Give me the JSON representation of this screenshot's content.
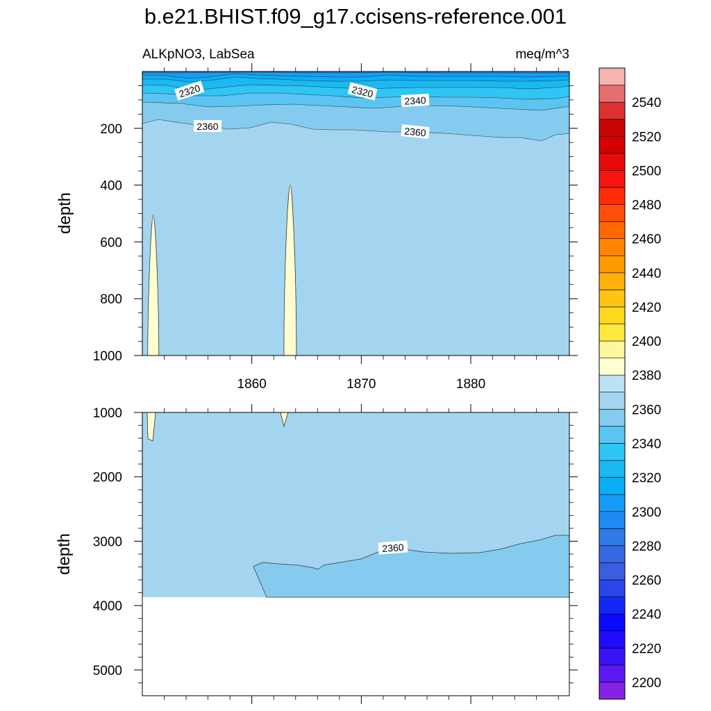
{
  "chart_data": {
    "type": "contour",
    "title": "b.e21.BHIST.f09_g17.ccisens-reference.001",
    "variable": "ALKpNO3, LabSea",
    "units": "meq/m^3",
    "ylabel": "depth",
    "x_range": [
      1850,
      1889
    ],
    "x_ticks": [
      1860,
      1870,
      1880
    ],
    "colorbar": {
      "levels": [
        2200,
        2210,
        2220,
        2230,
        2240,
        2250,
        2260,
        2270,
        2280,
        2290,
        2300,
        2310,
        2320,
        2330,
        2340,
        2350,
        2360,
        2370,
        2380,
        2390,
        2400,
        2410,
        2420,
        2430,
        2440,
        2450,
        2460,
        2470,
        2480,
        2490,
        2500,
        2510,
        2520,
        2530,
        2540,
        2550
      ],
      "tick_labels": [
        "2200",
        "2220",
        "2240",
        "2260",
        "2280",
        "2300",
        "2320",
        "2340",
        "2360",
        "2380",
        "2400",
        "2420",
        "2440",
        "2460",
        "2480",
        "2500",
        "2520",
        "2540"
      ],
      "colors": [
        "#8522e6",
        "#5d1af0",
        "#3a14f5",
        "#1f0cff",
        "#0a0aff",
        "#1428f5",
        "#2a46e8",
        "#3a5ee0",
        "#3669e0",
        "#2f7ce8",
        "#1e8af2",
        "#159df5",
        "#0aaef5",
        "#1ab9f2",
        "#2ec6f5",
        "#5cc4f2",
        "#85cbef",
        "#a3d5f0",
        "#bbe2f2",
        "#fffed0",
        "#fff79e",
        "#ffe941",
        "#ffd91e",
        "#ffc414",
        "#ffb00a",
        "#ff9a00",
        "#ff8400",
        "#ff6a00",
        "#ff4e0a",
        "#ff2c0a",
        "#f51410",
        "#e80a0a",
        "#d40000",
        "#c80505",
        "#dc3232",
        "#e66e6e",
        "#f7b2b2"
      ]
    },
    "panels": [
      {
        "name": "upper",
        "y_range": [
          0,
          1000
        ],
        "y_ticks": [
          "200",
          "400",
          "600",
          "800",
          "1000"
        ],
        "background_value": 2365,
        "contour_labels": [
          "2320",
          "2320",
          "2340",
          "2360",
          "2360"
        ],
        "anomalies": [
          {
            "year": 1851.0,
            "value": 2385,
            "depth_top": 505
          },
          {
            "year": 1863.5,
            "value": 2385,
            "depth_top": 400
          }
        ]
      },
      {
        "name": "lower",
        "y_range": [
          1000,
          5400
        ],
        "y_ticks": [
          "1000",
          "2000",
          "3000",
          "4000",
          "5000"
        ],
        "background_value": 2365,
        "seafloor_depth": 3870,
        "contour_labels": [
          "2360"
        ],
        "lower_region_value": 2355
      }
    ]
  }
}
